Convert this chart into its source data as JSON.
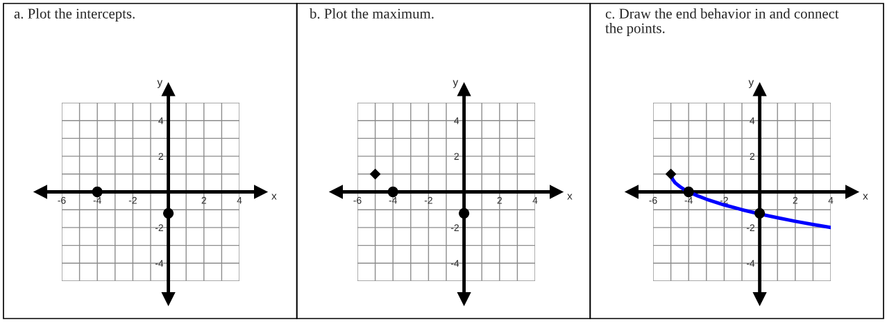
{
  "chart_data": [
    {
      "type": "scatter",
      "title": "a. Plot the intercepts.",
      "xlabel": "x",
      "ylabel": "y",
      "xlim": [
        -6,
        4
      ],
      "ylim": [
        -5,
        5
      ],
      "xticks": [
        -6,
        -4,
        -2,
        2,
        4
      ],
      "yticks": [
        -4,
        -2,
        2,
        4
      ],
      "grid": true,
      "series": [
        {
          "type": "scatter",
          "marker": "circle",
          "color": "#000000",
          "x": [
            -4,
            0
          ],
          "values": [
            0,
            -1.2
          ]
        }
      ]
    },
    {
      "type": "scatter",
      "title": "b. Plot the maximum.",
      "xlabel": "x",
      "ylabel": "y",
      "xlim": [
        -6,
        4
      ],
      "ylim": [
        -5,
        5
      ],
      "xticks": [
        -6,
        -4,
        -2,
        2,
        4
      ],
      "yticks": [
        -4,
        -2,
        2,
        4
      ],
      "grid": true,
      "series": [
        {
          "type": "scatter",
          "marker": "diamond",
          "color": "#000000",
          "x": [
            -5
          ],
          "values": [
            1
          ]
        },
        {
          "type": "scatter",
          "marker": "circle",
          "color": "#000000",
          "x": [
            -4,
            0
          ],
          "values": [
            0,
            -1.2
          ]
        }
      ]
    },
    {
      "type": "scatter",
      "title": "c. Draw the end behavior in and connect the points.",
      "xlabel": "x",
      "ylabel": "y",
      "xlim": [
        -6,
        4
      ],
      "ylim": [
        -5,
        5
      ],
      "xticks": [
        -6,
        -4,
        -2,
        2,
        4
      ],
      "yticks": [
        -4,
        -2,
        2,
        4
      ],
      "grid": true,
      "series": [
        {
          "type": "line",
          "marker": "none",
          "color": "#0000ff",
          "x": [
            -5,
            -4.9,
            -4.75,
            -4.5,
            -4.25,
            -4,
            -3.5,
            -3,
            -2,
            -1,
            0,
            1,
            2,
            3,
            4
          ],
          "values": [
            1,
            0.7,
            0.5,
            0.3,
            0.13,
            0,
            -0.22,
            -0.41,
            -0.73,
            -1,
            -1.24,
            -1.45,
            -1.65,
            -1.83,
            -2
          ]
        },
        {
          "type": "scatter",
          "marker": "diamond",
          "color": "#000000",
          "x": [
            -5
          ],
          "values": [
            1
          ]
        },
        {
          "type": "scatter",
          "marker": "circle",
          "color": "#000000",
          "x": [
            -4,
            0
          ],
          "values": [
            0,
            -1.2
          ]
        }
      ]
    }
  ]
}
